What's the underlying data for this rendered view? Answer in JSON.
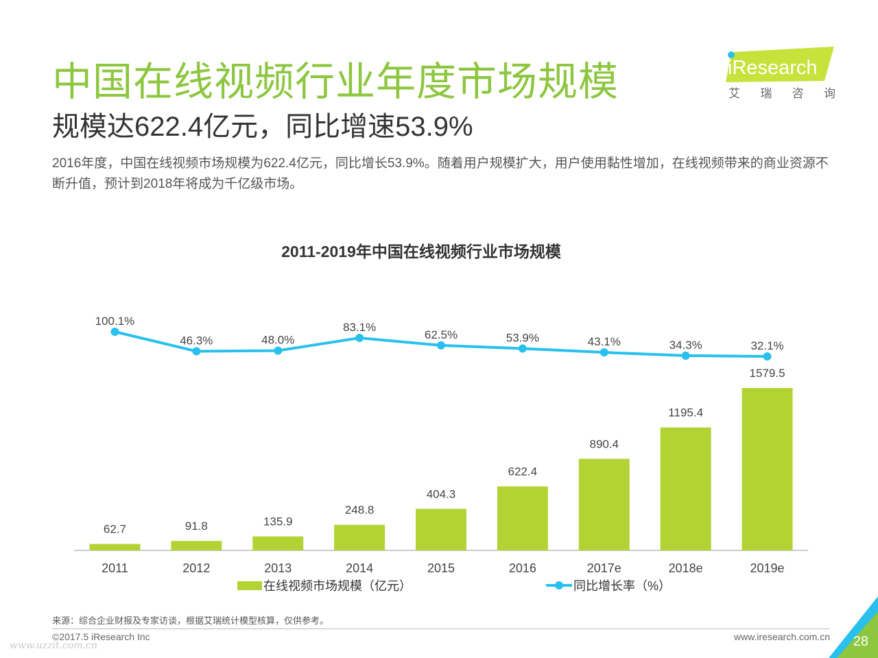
{
  "header": {
    "title": "中国在线视频行业年度市场规模",
    "subtitle": "规模达622.4亿元，同比增速53.9%",
    "description": "2016年度，中国在线视频市场规模为622.4亿元，同比增长53.9%。随着用户规模扩大，用户使用黏性增加，在线视频带来的商业资源不断升值，预计到2018年将成为千亿级市场。"
  },
  "logo": {
    "brand": "iResearch",
    "cn": "艾 瑞 咨 询"
  },
  "colors": {
    "bar": "#b3d335",
    "line": "#29c0ee",
    "title": "#8dc63f",
    "logo_bg": "#c7e23b",
    "corner_blue": "#29c0ee",
    "corner_green": "#8dc63f"
  },
  "chart_data": {
    "type": "bar",
    "title": "2011-2019年中国在线视频行业市场规模",
    "categories": [
      "2011",
      "2012",
      "2013",
      "2014",
      "2015",
      "2016",
      "2017e",
      "2018e",
      "2019e"
    ],
    "series": [
      {
        "name": "在线视频市场规模（亿元）",
        "type": "bar",
        "values": [
          62.7,
          91.8,
          135.9,
          248.8,
          404.3,
          622.4,
          890.4,
          1195.4,
          1579.5
        ],
        "labels": [
          "62.7",
          "91.8",
          "135.9",
          "248.8",
          "404.3",
          "622.4",
          "890.4",
          "1195.4",
          "1579.5"
        ]
      },
      {
        "name": "同比增长率（%）",
        "type": "line",
        "values": [
          100.1,
          46.3,
          48.0,
          83.1,
          62.5,
          53.9,
          43.1,
          34.3,
          32.1
        ],
        "labels": [
          "100.1%",
          "46.3%",
          "48.0%",
          "83.1%",
          "62.5%",
          "53.9%",
          "43.1%",
          "34.3%",
          "32.1%"
        ]
      }
    ],
    "legend_position": "bottom"
  },
  "footer": {
    "source": "来源：综合企业财报及专家访谈，根据艾瑞统计模型核算，仅供参考。",
    "copyright": "©2017.5 iResearch Inc",
    "website": "www.iresearch.com.cn",
    "page": "28",
    "watermark": "www.uzzit.com.cn"
  }
}
